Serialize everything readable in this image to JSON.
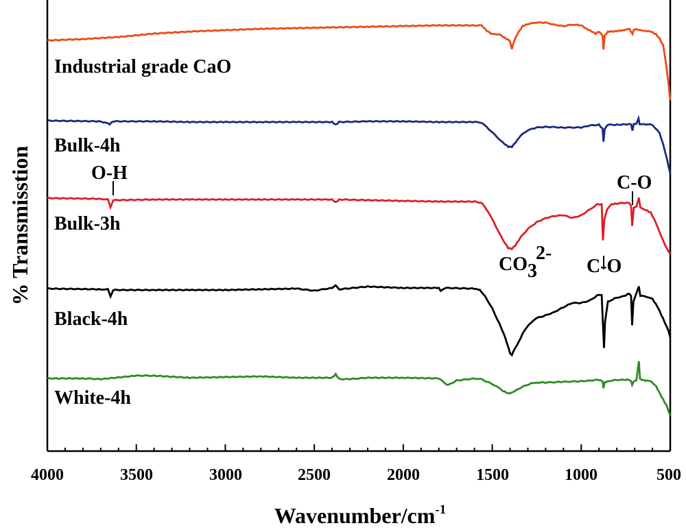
{
  "chart_data": {
    "type": "line",
    "title": "",
    "xlabel": "Wavenumber/cm",
    "xlabel_superscript": "-1",
    "ylabel": "% Transmisstion",
    "xlim": [
      4000,
      500
    ],
    "x_reversed": true,
    "grid": false,
    "x_ticks": [
      "4000",
      "3500",
      "3000",
      "2500",
      "2000",
      "1500",
      "1000",
      "500"
    ],
    "series": [
      {
        "name": "Industrial grade CaO",
        "color": "#ee4a14",
        "baseline": 59,
        "points": [
          [
            4000,
            59
          ],
          [
            3800,
            57
          ],
          [
            3600,
            54
          ],
          [
            3400,
            49
          ],
          [
            3200,
            46
          ],
          [
            3000,
            44
          ],
          [
            2800,
            42
          ],
          [
            2600,
            41
          ],
          [
            2400,
            40
          ],
          [
            2200,
            39
          ],
          [
            2000,
            38
          ],
          [
            1800,
            37
          ],
          [
            1600,
            37
          ],
          [
            1560,
            37
          ],
          [
            1530,
            45
          ],
          [
            1500,
            50
          ],
          [
            1460,
            50
          ],
          [
            1430,
            55
          ],
          [
            1400,
            60
          ],
          [
            1390,
            72
          ],
          [
            1380,
            62
          ],
          [
            1360,
            50
          ],
          [
            1330,
            38
          ],
          [
            1300,
            35
          ],
          [
            1250,
            33
          ],
          [
            1200,
            33
          ],
          [
            1150,
            36
          ],
          [
            1100,
            38
          ],
          [
            1050,
            36
          ],
          [
            1000,
            37
          ],
          [
            970,
            42
          ],
          [
            940,
            46
          ],
          [
            920,
            49
          ],
          [
            900,
            46
          ],
          [
            880,
            52
          ],
          [
            875,
            72
          ],
          [
            868,
            52
          ],
          [
            850,
            46
          ],
          [
            820,
            46
          ],
          [
            790,
            45
          ],
          [
            760,
            44
          ],
          [
            730,
            42
          ],
          [
            712,
            50
          ],
          [
            705,
            43
          ],
          [
            690,
            43
          ],
          [
            670,
            44
          ],
          [
            640,
            45
          ],
          [
            610,
            46
          ],
          [
            580,
            50
          ],
          [
            560,
            56
          ],
          [
            540,
            66
          ],
          [
            525,
            90
          ],
          [
            510,
            120
          ],
          [
            500,
            146
          ]
        ]
      },
      {
        "name": "Bulk-4h",
        "color": "#1a2a80",
        "baseline": 176,
        "points": [
          [
            4000,
            176
          ],
          [
            3700,
            177
          ],
          [
            3650,
            181
          ],
          [
            3630,
            177
          ],
          [
            3400,
            177
          ],
          [
            3200,
            178
          ],
          [
            3000,
            178
          ],
          [
            2800,
            178
          ],
          [
            2600,
            178
          ],
          [
            2400,
            178
          ],
          [
            2380,
            182
          ],
          [
            2360,
            178
          ],
          [
            2200,
            177
          ],
          [
            2000,
            177
          ],
          [
            1800,
            178
          ],
          [
            1600,
            178
          ],
          [
            1560,
            179
          ],
          [
            1520,
            188
          ],
          [
            1480,
            198
          ],
          [
            1440,
            208
          ],
          [
            1410,
            214
          ],
          [
            1390,
            214
          ],
          [
            1370,
            208
          ],
          [
            1340,
            198
          ],
          [
            1300,
            190
          ],
          [
            1250,
            186
          ],
          [
            1200,
            185
          ],
          [
            1100,
            186
          ],
          [
            1000,
            186
          ],
          [
            950,
            183
          ],
          [
            900,
            182
          ],
          [
            880,
            188
          ],
          [
            875,
            207
          ],
          [
            868,
            188
          ],
          [
            850,
            182
          ],
          [
            800,
            182
          ],
          [
            720,
            181
          ],
          [
            712,
            191
          ],
          [
            705,
            181
          ],
          [
            690,
            181
          ],
          [
            678,
            172
          ],
          [
            672,
            181
          ],
          [
            650,
            181
          ],
          [
            600,
            182
          ],
          [
            560,
            194
          ],
          [
            540,
            210
          ],
          [
            520,
            230
          ],
          [
            500,
            253
          ]
        ]
      },
      {
        "name": "Bulk-3h",
        "color": "#dd1e26",
        "baseline": 289,
        "points": [
          [
            4000,
            289
          ],
          [
            3700,
            290
          ],
          [
            3660,
            291
          ],
          [
            3645,
            302
          ],
          [
            3630,
            292
          ],
          [
            3400,
            291
          ],
          [
            3200,
            291
          ],
          [
            3000,
            291
          ],
          [
            2800,
            291
          ],
          [
            2600,
            291
          ],
          [
            2400,
            291
          ],
          [
            2380,
            295
          ],
          [
            2360,
            291
          ],
          [
            2200,
            292
          ],
          [
            2000,
            293
          ],
          [
            1800,
            294
          ],
          [
            1600,
            294
          ],
          [
            1560,
            296
          ],
          [
            1520,
            310
          ],
          [
            1480,
            330
          ],
          [
            1440,
            350
          ],
          [
            1410,
            362
          ],
          [
            1390,
            363
          ],
          [
            1370,
            358
          ],
          [
            1340,
            346
          ],
          [
            1300,
            334
          ],
          [
            1250,
            324
          ],
          [
            1200,
            318
          ],
          [
            1150,
            315
          ],
          [
            1100,
            314
          ],
          [
            1050,
            318
          ],
          [
            1000,
            314
          ],
          [
            950,
            305
          ],
          [
            910,
            298
          ],
          [
            885,
            298
          ],
          [
            878,
            350
          ],
          [
            870,
            320
          ],
          [
            855,
            305
          ],
          [
            830,
            298
          ],
          [
            800,
            297
          ],
          [
            760,
            296
          ],
          [
            730,
            296
          ],
          [
            720,
            300
          ],
          [
            714,
            330
          ],
          [
            705,
            303
          ],
          [
            690,
            302
          ],
          [
            676,
            288
          ],
          [
            668,
            303
          ],
          [
            640,
            306
          ],
          [
            610,
            310
          ],
          [
            580,
            325
          ],
          [
            550,
            345
          ],
          [
            520,
            362
          ],
          [
            500,
            370
          ]
        ]
      },
      {
        "name": "Black-4h",
        "color": "#000000",
        "baseline": 421,
        "points": [
          [
            4000,
            421
          ],
          [
            3700,
            422
          ],
          [
            3660,
            422
          ],
          [
            3645,
            432
          ],
          [
            3630,
            423
          ],
          [
            3400,
            423
          ],
          [
            3200,
            423
          ],
          [
            3000,
            423
          ],
          [
            2800,
            422
          ],
          [
            2600,
            421
          ],
          [
            2500,
            424
          ],
          [
            2400,
            420
          ],
          [
            2380,
            416
          ],
          [
            2360,
            422
          ],
          [
            2200,
            418
          ],
          [
            2000,
            420
          ],
          [
            1800,
            420
          ],
          [
            1790,
            424
          ],
          [
            1760,
            420
          ],
          [
            1600,
            421
          ],
          [
            1570,
            423
          ],
          [
            1540,
            432
          ],
          [
            1500,
            450
          ],
          [
            1460,
            472
          ],
          [
            1430,
            490
          ],
          [
            1400,
            515
          ],
          [
            1390,
            518
          ],
          [
            1380,
            512
          ],
          [
            1350,
            498
          ],
          [
            1320,
            482
          ],
          [
            1280,
            470
          ],
          [
            1250,
            464
          ],
          [
            1200,
            460
          ],
          [
            1150,
            455
          ],
          [
            1100,
            448
          ],
          [
            1050,
            442
          ],
          [
            1000,
            442
          ],
          [
            950,
            438
          ],
          [
            910,
            431
          ],
          [
            885,
            430
          ],
          [
            878,
            472
          ],
          [
            872,
            508
          ],
          [
            866,
            470
          ],
          [
            850,
            440
          ],
          [
            800,
            434
          ],
          [
            760,
            432
          ],
          [
            730,
            428
          ],
          [
            720,
            432
          ],
          [
            714,
            475
          ],
          [
            707,
            440
          ],
          [
            690,
            428
          ],
          [
            676,
            418
          ],
          [
            668,
            432
          ],
          [
            640,
            432
          ],
          [
            600,
            436
          ],
          [
            570,
            448
          ],
          [
            540,
            465
          ],
          [
            510,
            482
          ],
          [
            500,
            492
          ]
        ]
      },
      {
        "name": "White-4h",
        "color": "#2e8b22",
        "baseline": 552,
        "points": [
          [
            4000,
            552
          ],
          [
            3800,
            552
          ],
          [
            3700,
            553
          ],
          [
            3500,
            548
          ],
          [
            3400,
            548
          ],
          [
            3200,
            551
          ],
          [
            3000,
            550
          ],
          [
            2800,
            549
          ],
          [
            2600,
            551
          ],
          [
            2400,
            551
          ],
          [
            2380,
            546
          ],
          [
            2360,
            553
          ],
          [
            2300,
            553
          ],
          [
            2200,
            551
          ],
          [
            2000,
            551
          ],
          [
            1800,
            552
          ],
          [
            1750,
            562
          ],
          [
            1700,
            555
          ],
          [
            1600,
            552
          ],
          [
            1560,
            553
          ],
          [
            1520,
            558
          ],
          [
            1480,
            563
          ],
          [
            1440,
            570
          ],
          [
            1410,
            574
          ],
          [
            1390,
            573
          ],
          [
            1360,
            568
          ],
          [
            1320,
            563
          ],
          [
            1280,
            559
          ],
          [
            1250,
            558
          ],
          [
            1200,
            558
          ],
          [
            1100,
            557
          ],
          [
            1000,
            556
          ],
          [
            950,
            555
          ],
          [
            900,
            554
          ],
          [
            880,
            556
          ],
          [
            875,
            566
          ],
          [
            868,
            558
          ],
          [
            850,
            556
          ],
          [
            800,
            554
          ],
          [
            760,
            554
          ],
          [
            730,
            554
          ],
          [
            720,
            556
          ],
          [
            714,
            562
          ],
          [
            705,
            556
          ],
          [
            690,
            555
          ],
          [
            676,
            527
          ],
          [
            670,
            553
          ],
          [
            640,
            555
          ],
          [
            610,
            556
          ],
          [
            580,
            563
          ],
          [
            550,
            578
          ],
          [
            520,
            592
          ],
          [
            500,
            606
          ]
        ]
      }
    ],
    "annotations": [
      {
        "text": "O-H",
        "x": 3645
      },
      {
        "text": "C-O",
        "x": 718
      },
      {
        "text": "CO",
        "subscript": "3",
        "superscript": "2-",
        "x": 1400
      },
      {
        "text": "C-O",
        "x": 876
      }
    ]
  }
}
